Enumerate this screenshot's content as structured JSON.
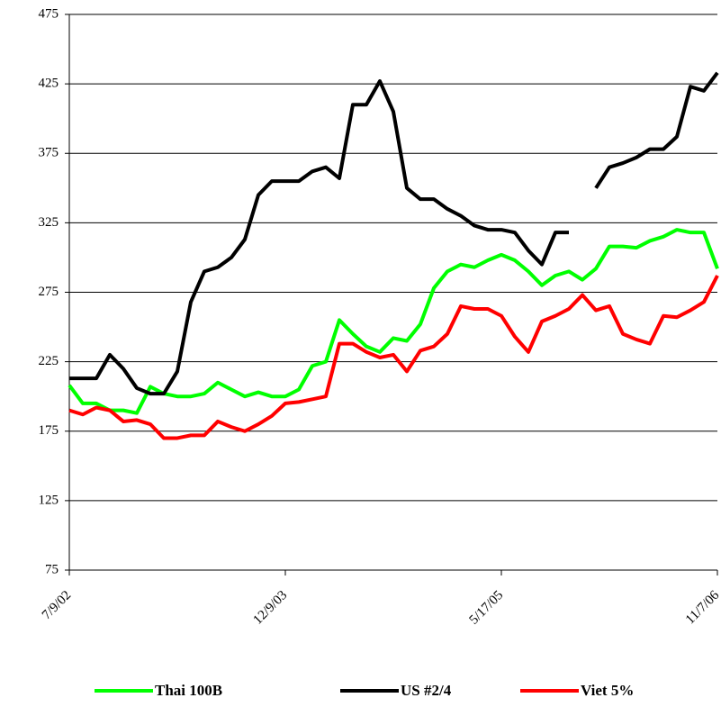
{
  "chart_data": {
    "type": "line",
    "categories": [
      "7/9/02",
      null,
      null,
      null,
      null,
      null,
      null,
      null,
      null,
      null,
      null,
      null,
      null,
      null,
      null,
      null,
      "12/9/03",
      null,
      null,
      null,
      null,
      null,
      null,
      null,
      null,
      null,
      null,
      null,
      null,
      null,
      null,
      null,
      "5/17/05",
      null,
      null,
      null,
      null,
      null,
      null,
      null,
      null,
      null,
      null,
      null,
      null,
      null,
      null,
      null,
      "11/7/06"
    ],
    "series": [
      {
        "name": "Thai 100B",
        "color": "#00ff00",
        "values": [
          208,
          195,
          195,
          190,
          190,
          188,
          207,
          202,
          200,
          200,
          202,
          210,
          205,
          200,
          203,
          200,
          200,
          205,
          222,
          225,
          255,
          245,
          236,
          232,
          242,
          240,
          252,
          278,
          290,
          295,
          293,
          298,
          302,
          298,
          290,
          280,
          287,
          290,
          284,
          292,
          308,
          308,
          307,
          312,
          315,
          320,
          318,
          318,
          292
        ]
      },
      {
        "name": "US #2/4",
        "color": "#000000",
        "values": [
          213,
          213,
          213,
          230,
          220,
          206,
          202,
          202,
          218,
          268,
          290,
          293,
          300,
          313,
          345,
          355,
          355,
          355,
          362,
          365,
          357,
          410,
          410,
          427,
          405,
          350,
          342,
          342,
          335,
          330,
          323,
          320,
          320,
          318,
          305,
          295,
          318,
          318,
          null,
          350,
          365,
          368,
          372,
          378,
          378,
          387,
          423,
          420,
          433
        ]
      },
      {
        "name": "Viet 5%",
        "color": "#ff0000",
        "values": [
          190,
          187,
          192,
          190,
          182,
          183,
          180,
          170,
          170,
          172,
          172,
          182,
          178,
          175,
          180,
          186,
          195,
          196,
          198,
          200,
          238,
          238,
          232,
          228,
          230,
          218,
          233,
          236,
          245,
          265,
          263,
          263,
          258,
          243,
          232,
          254,
          258,
          263,
          273,
          262,
          265,
          245,
          241,
          238,
          258,
          257,
          262,
          268,
          287
        ]
      }
    ],
    "ylim": [
      75,
      475
    ],
    "yticks": [
      75,
      125,
      175,
      225,
      275,
      325,
      375,
      425,
      475
    ],
    "grid": true,
    "legend": "bottom"
  }
}
